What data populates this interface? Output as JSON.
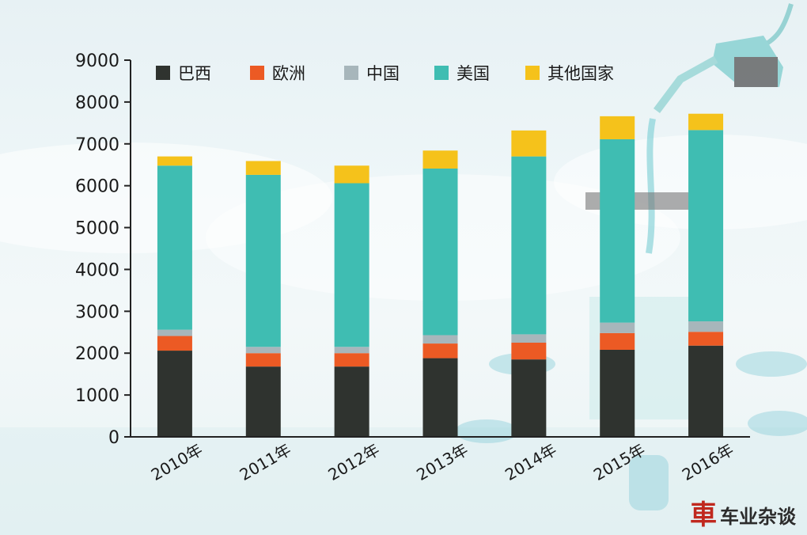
{
  "chart_data": {
    "type": "bar",
    "stacked": true,
    "categories": [
      "2010年",
      "2011年",
      "2012年",
      "2013年",
      "2014年",
      "2015年",
      "2016年"
    ],
    "series": [
      {
        "name": "巴西",
        "color": "#2f332f",
        "values": [
          2060,
          1680,
          1680,
          1880,
          1850,
          2080,
          2180
        ]
      },
      {
        "name": "欧洲",
        "color": "#ec5a24",
        "values": [
          350,
          320,
          320,
          350,
          400,
          400,
          330
        ]
      },
      {
        "name": "中国",
        "color": "#a7b6bb",
        "values": [
          150,
          150,
          150,
          200,
          200,
          250,
          250
        ]
      },
      {
        "name": "美国",
        "color": "#3fbdb2",
        "values": [
          3920,
          4110,
          3910,
          3980,
          4250,
          4380,
          4570
        ]
      },
      {
        "name": "其他国家",
        "color": "#f5c21b",
        "values": [
          220,
          330,
          420,
          430,
          620,
          550,
          390
        ]
      }
    ],
    "y_ticks": [
      "9000",
      "8000",
      "7000",
      "6000",
      "5000",
      "4000",
      "3000",
      "2000",
      "1000",
      "0"
    ],
    "ylim": [
      0,
      9000
    ],
    "legend_position": "top-left",
    "grid": false
  },
  "watermark": {
    "logo": "車",
    "text": "车业杂谈"
  }
}
